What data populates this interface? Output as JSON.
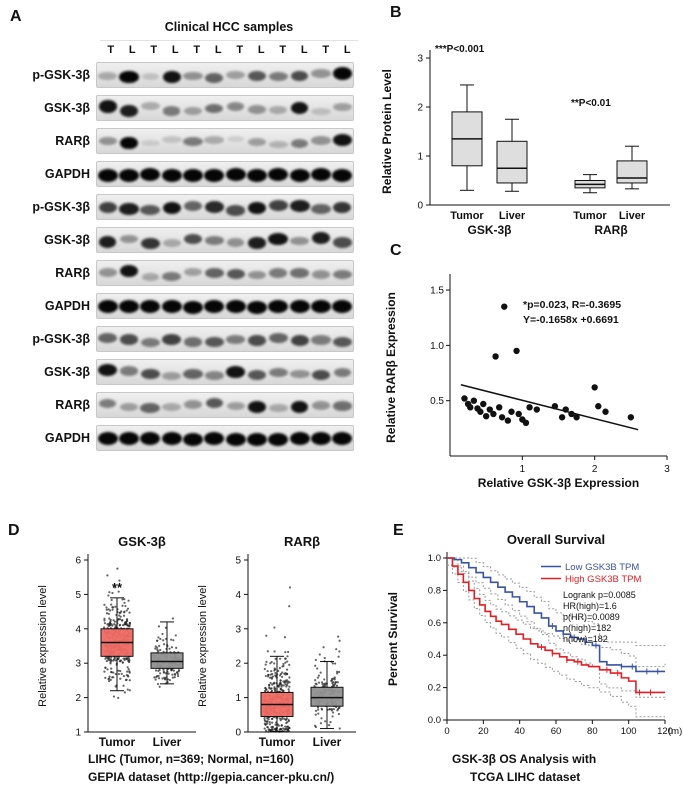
{
  "panel_a": {
    "label": "A",
    "title": "Clinical HCC samples",
    "lane_labels": [
      "T",
      "L",
      "T",
      "L",
      "T",
      "L",
      "T",
      "L",
      "T",
      "L",
      "T",
      "L"
    ],
    "rows": [
      {
        "label": "p-GSK-3β",
        "bands": [
          0.25,
          0.95,
          0.15,
          0.9,
          0.35,
          0.55,
          0.3,
          0.6,
          0.45,
          0.65,
          0.35,
          0.95
        ]
      },
      {
        "label": "GSK-3β",
        "bands": [
          0.9,
          0.85,
          0.25,
          0.45,
          0.3,
          0.5,
          0.4,
          0.35,
          0.25,
          0.9,
          0.15,
          0.3
        ]
      },
      {
        "label": "RARβ",
        "bands": [
          0.35,
          0.95,
          0.1,
          0.15,
          0.45,
          0.25,
          0.1,
          0.3,
          0.2,
          0.45,
          0.35,
          0.9
        ]
      },
      {
        "label": "GAPDH",
        "bands": [
          0.95,
          0.95,
          0.95,
          0.95,
          0.95,
          0.95,
          0.95,
          0.95,
          0.95,
          0.95,
          0.95,
          0.95
        ]
      },
      {
        "label": "p-GSK-3β",
        "bands": [
          0.7,
          0.85,
          0.6,
          0.9,
          0.55,
          0.8,
          0.65,
          0.9,
          0.7,
          0.85,
          0.55,
          0.75
        ]
      },
      {
        "label": "GSK-3β",
        "bands": [
          0.85,
          0.35,
          0.75,
          0.25,
          0.65,
          0.45,
          0.35,
          0.85,
          0.9,
          0.35,
          0.85,
          0.65
        ]
      },
      {
        "label": "RARβ",
        "bands": [
          0.35,
          0.9,
          0.25,
          0.45,
          0.3,
          0.55,
          0.6,
          0.35,
          0.45,
          0.5,
          0.35,
          0.45
        ]
      },
      {
        "label": "GAPDH",
        "bands": [
          0.95,
          0.95,
          0.95,
          0.95,
          0.95,
          0.95,
          0.95,
          0.95,
          0.95,
          0.95,
          0.95,
          0.95
        ]
      },
      {
        "label": "p-GSK-3β",
        "bands": [
          0.55,
          0.65,
          0.45,
          0.7,
          0.5,
          0.6,
          0.45,
          0.65,
          0.55,
          0.7,
          0.45,
          0.6
        ]
      },
      {
        "label": "GSK-3β",
        "bands": [
          0.9,
          0.45,
          0.65,
          0.3,
          0.55,
          0.4,
          0.9,
          0.6,
          0.45,
          0.35,
          0.65,
          0.45
        ]
      },
      {
        "label": "RARβ",
        "bands": [
          0.45,
          0.3,
          0.55,
          0.25,
          0.35,
          0.6,
          0.3,
          0.9,
          0.25,
          0.9,
          0.35,
          0.5
        ]
      },
      {
        "label": "GAPDH",
        "bands": [
          0.95,
          0.95,
          0.95,
          0.95,
          0.95,
          0.95,
          0.95,
          0.95,
          0.95,
          0.95,
          0.95,
          0.95
        ]
      }
    ]
  },
  "panel_b": {
    "label": "B"
  },
  "panel_c": {
    "label": "C"
  },
  "panel_d": {
    "label": "D",
    "caption_line1": "LIHC (Tumor, n=369; Normal, n=160)",
    "caption_line2": "GEPIA dataset (http://gepia.cancer-pku.cn/)"
  },
  "panel_e": {
    "label": "E",
    "stats": [
      "Logrank p=0.0085",
      "HR(high)=1.6",
      "p(HR)=0.0089",
      "n(high)=182",
      "n(low)=182"
    ],
    "caption_line1": "GSK-3β OS Analysis with",
    "caption_line2": "TCGA LIHC dataset"
  },
  "chart_data": [
    {
      "id": "B",
      "type": "box",
      "ylabel": "Relative Protein Level",
      "ylim": [
        0,
        3
      ],
      "yticks": [
        0,
        1,
        2,
        3
      ],
      "groups": [
        {
          "name": "GSK-3β",
          "annotation": "***P<0.001",
          "boxes": [
            {
              "category": "Tumor",
              "min": 0.3,
              "q1": 0.8,
              "median": 1.35,
              "q3": 1.9,
              "max": 2.45
            },
            {
              "category": "Liver",
              "min": 0.28,
              "q1": 0.45,
              "median": 0.75,
              "q3": 1.3,
              "max": 1.75
            }
          ]
        },
        {
          "name": "RARβ",
          "annotation": "**P<0.01",
          "boxes": [
            {
              "category": "Tumor",
              "min": 0.25,
              "q1": 0.35,
              "median": 0.42,
              "q3": 0.5,
              "max": 0.62
            },
            {
              "category": "Liver",
              "min": 0.33,
              "q1": 0.45,
              "median": 0.55,
              "q3": 0.9,
              "max": 1.2
            }
          ]
        }
      ]
    },
    {
      "id": "C",
      "type": "scatter",
      "xlabel": "Relative GSK-3β Expression",
      "ylabel": "Relative RARβ Expression",
      "xlim": [
        0,
        3
      ],
      "ylim": [
        0,
        1.6
      ],
      "xticks": [
        1,
        2,
        3
      ],
      "yticks": [
        0.5,
        1.0,
        1.5
      ],
      "annotations": [
        "*p=0.023, R=-0.3695",
        "Y=-0.1658x +0.6691"
      ],
      "regression": {
        "slope": -0.1658,
        "intercept": 0.6691,
        "x_start": 0.15,
        "x_end": 2.6
      },
      "points": [
        [
          0.2,
          0.52
        ],
        [
          0.25,
          0.47
        ],
        [
          0.28,
          0.44
        ],
        [
          0.33,
          0.5
        ],
        [
          0.38,
          0.43
        ],
        [
          0.42,
          0.4
        ],
        [
          0.46,
          0.47
        ],
        [
          0.5,
          0.36
        ],
        [
          0.55,
          0.42
        ],
        [
          0.6,
          0.38
        ],
        [
          0.63,
          0.9
        ],
        [
          0.68,
          0.44
        ],
        [
          0.72,
          0.35
        ],
        [
          0.75,
          1.35
        ],
        [
          0.8,
          0.32
        ],
        [
          0.85,
          0.4
        ],
        [
          0.92,
          0.95
        ],
        [
          0.95,
          0.38
        ],
        [
          1.0,
          0.33
        ],
        [
          1.05,
          0.3
        ],
        [
          1.1,
          0.44
        ],
        [
          1.2,
          0.42
        ],
        [
          1.45,
          0.45
        ],
        [
          1.55,
          0.35
        ],
        [
          1.6,
          0.42
        ],
        [
          1.68,
          0.38
        ],
        [
          1.75,
          0.35
        ],
        [
          2.0,
          0.62
        ],
        [
          2.05,
          0.45
        ],
        [
          2.15,
          0.4
        ],
        [
          2.5,
          0.35
        ]
      ]
    },
    {
      "id": "D1",
      "type": "box-jitter",
      "title": "GSK-3β",
      "ylabel": "Relative expression level",
      "ylim": [
        1,
        6
      ],
      "yticks": [
        1,
        2,
        3,
        4,
        5,
        6
      ],
      "annotation": "**",
      "boxes": [
        {
          "category": "Tumor",
          "color": "#ef6a63",
          "n": 369,
          "min": 2.2,
          "q1": 3.2,
          "median": 3.6,
          "q3": 4.0,
          "max": 4.9,
          "jitter_mean": 3.6,
          "jitter_sd": 0.55,
          "jitter_min": 1.9,
          "jitter_max": 5.9
        },
        {
          "category": "Liver",
          "color": "#919191",
          "n": 160,
          "min": 2.4,
          "q1": 2.85,
          "median": 3.05,
          "q3": 3.3,
          "max": 4.2,
          "jitter_mean": 3.05,
          "jitter_sd": 0.35,
          "jitter_min": 2.2,
          "jitter_max": 4.3
        }
      ]
    },
    {
      "id": "D2",
      "type": "box-jitter",
      "title": "RARβ",
      "ylabel": "Relative expression level",
      "ylim": [
        0,
        5
      ],
      "yticks": [
        0,
        1,
        2,
        3,
        4,
        5
      ],
      "boxes": [
        {
          "category": "Tumor",
          "color": "#ef6a63",
          "n": 369,
          "min": 0.02,
          "q1": 0.45,
          "median": 0.8,
          "q3": 1.15,
          "max": 2.2,
          "jitter_mean": 0.85,
          "jitter_sd": 0.6,
          "jitter_min": 0.0,
          "jitter_max": 4.3
        },
        {
          "category": "Liver",
          "color": "#919191",
          "n": 160,
          "min": 0.1,
          "q1": 0.75,
          "median": 1.0,
          "q3": 1.3,
          "max": 2.05,
          "jitter_mean": 1.0,
          "jitter_sd": 0.45,
          "jitter_min": 0.05,
          "jitter_max": 3.3
        }
      ]
    },
    {
      "id": "E",
      "type": "line-step",
      "title": "Overall Survival",
      "ylabel": "Percent Survival",
      "xlabel": "(m)",
      "xlim": [
        0,
        120
      ],
      "ylim": [
        0,
        1
      ],
      "xticks": [
        0,
        20,
        40,
        60,
        80,
        100,
        120
      ],
      "yticks": [
        0.0,
        0.2,
        0.4,
        0.6,
        0.8,
        1.0
      ],
      "series": [
        {
          "name": "Low GSK3B TPM",
          "color": "#3953a4",
          "points": [
            [
              0,
              1.0
            ],
            [
              4,
              0.99
            ],
            [
              8,
              0.97
            ],
            [
              12,
              0.94
            ],
            [
              16,
              0.91
            ],
            [
              20,
              0.88
            ],
            [
              24,
              0.85
            ],
            [
              28,
              0.82
            ],
            [
              32,
              0.79
            ],
            [
              36,
              0.76
            ],
            [
              40,
              0.73
            ],
            [
              44,
              0.7
            ],
            [
              48,
              0.66
            ],
            [
              52,
              0.63
            ],
            [
              56,
              0.58
            ],
            [
              60,
              0.55
            ],
            [
              64,
              0.53
            ],
            [
              68,
              0.51
            ],
            [
              72,
              0.5
            ],
            [
              76,
              0.48
            ],
            [
              80,
              0.46
            ],
            [
              84,
              0.36
            ],
            [
              88,
              0.34
            ],
            [
              96,
              0.33
            ],
            [
              104,
              0.3
            ],
            [
              120,
              0.3
            ]
          ],
          "censors": [
            58,
            64,
            70,
            76,
            82,
            96,
            102,
            110,
            116
          ]
        },
        {
          "name": "High GSK3B TPM",
          "color": "#e31e24",
          "points": [
            [
              0,
              1.0
            ],
            [
              3,
              0.95
            ],
            [
              6,
              0.9
            ],
            [
              9,
              0.85
            ],
            [
              12,
              0.8
            ],
            [
              15,
              0.75
            ],
            [
              18,
              0.71
            ],
            [
              21,
              0.67
            ],
            [
              24,
              0.64
            ],
            [
              27,
              0.61
            ],
            [
              30,
              0.59
            ],
            [
              34,
              0.56
            ],
            [
              38,
              0.53
            ],
            [
              42,
              0.5
            ],
            [
              46,
              0.47
            ],
            [
              50,
              0.45
            ],
            [
              54,
              0.43
            ],
            [
              58,
              0.41
            ],
            [
              62,
              0.39
            ],
            [
              66,
              0.37
            ],
            [
              70,
              0.36
            ],
            [
              74,
              0.34
            ],
            [
              78,
              0.33
            ],
            [
              84,
              0.31
            ],
            [
              90,
              0.29
            ],
            [
              96,
              0.26
            ],
            [
              100,
              0.24
            ],
            [
              104,
              0.17
            ],
            [
              120,
              0.17
            ]
          ],
          "censors": [
            52,
            58,
            66,
            72,
            88,
            94,
            106,
            112
          ]
        }
      ]
    }
  ]
}
